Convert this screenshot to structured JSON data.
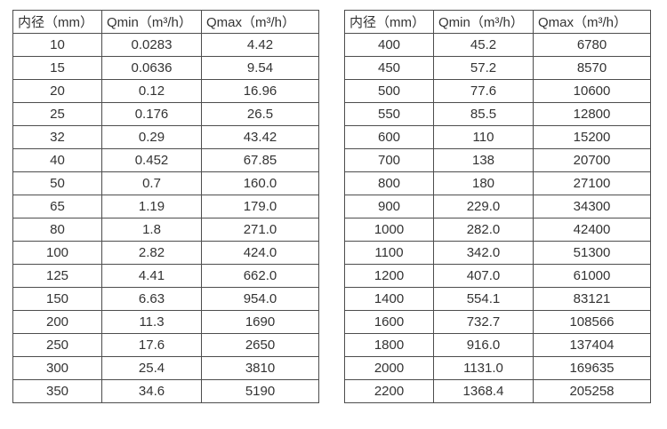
{
  "tables": [
    {
      "name": "flow-table-left",
      "headers": [
        "内径（mm）",
        "Qmin（m³/h）",
        "Qmax（m³/h）"
      ],
      "rows": [
        [
          "10",
          "0.0283",
          "4.42"
        ],
        [
          "15",
          "0.0636",
          "9.54"
        ],
        [
          "20",
          "0.12",
          "16.96"
        ],
        [
          "25",
          "0.176",
          "26.5"
        ],
        [
          "32",
          "0.29",
          "43.42"
        ],
        [
          "40",
          "0.452",
          "67.85"
        ],
        [
          "50",
          "0.7",
          "160.0"
        ],
        [
          "65",
          "1.19",
          "179.0"
        ],
        [
          "80",
          "1.8",
          "271.0"
        ],
        [
          "100",
          "2.82",
          "424.0"
        ],
        [
          "125",
          "4.41",
          "662.0"
        ],
        [
          "150",
          "6.63",
          "954.0"
        ],
        [
          "200",
          "11.3",
          "1690"
        ],
        [
          "250",
          "17.6",
          "2650"
        ],
        [
          "300",
          "25.4",
          "3810"
        ],
        [
          "350",
          "34.6",
          "5190"
        ]
      ]
    },
    {
      "name": "flow-table-right",
      "headers": [
        "内径（mm）",
        "Qmin（m³/h）",
        "Qmax（m³/h）"
      ],
      "rows": [
        [
          "400",
          "45.2",
          "6780"
        ],
        [
          "450",
          "57.2",
          "8570"
        ],
        [
          "500",
          "77.6",
          "10600"
        ],
        [
          "550",
          "85.5",
          "12800"
        ],
        [
          "600",
          "110",
          "15200"
        ],
        [
          "700",
          "138",
          "20700"
        ],
        [
          "800",
          "180",
          "27100"
        ],
        [
          "900",
          "229.0",
          "34300"
        ],
        [
          "1000",
          "282.0",
          "42400"
        ],
        [
          "1100",
          "342.0",
          "51300"
        ],
        [
          "1200",
          "407.0",
          "61000"
        ],
        [
          "1400",
          "554.1",
          "83121"
        ],
        [
          "1600",
          "732.7",
          "108566"
        ],
        [
          "1800",
          "916.0",
          "137404"
        ],
        [
          "2000",
          "1131.0",
          "169635"
        ],
        [
          "2200",
          "1368.4",
          "205258"
        ]
      ]
    }
  ]
}
